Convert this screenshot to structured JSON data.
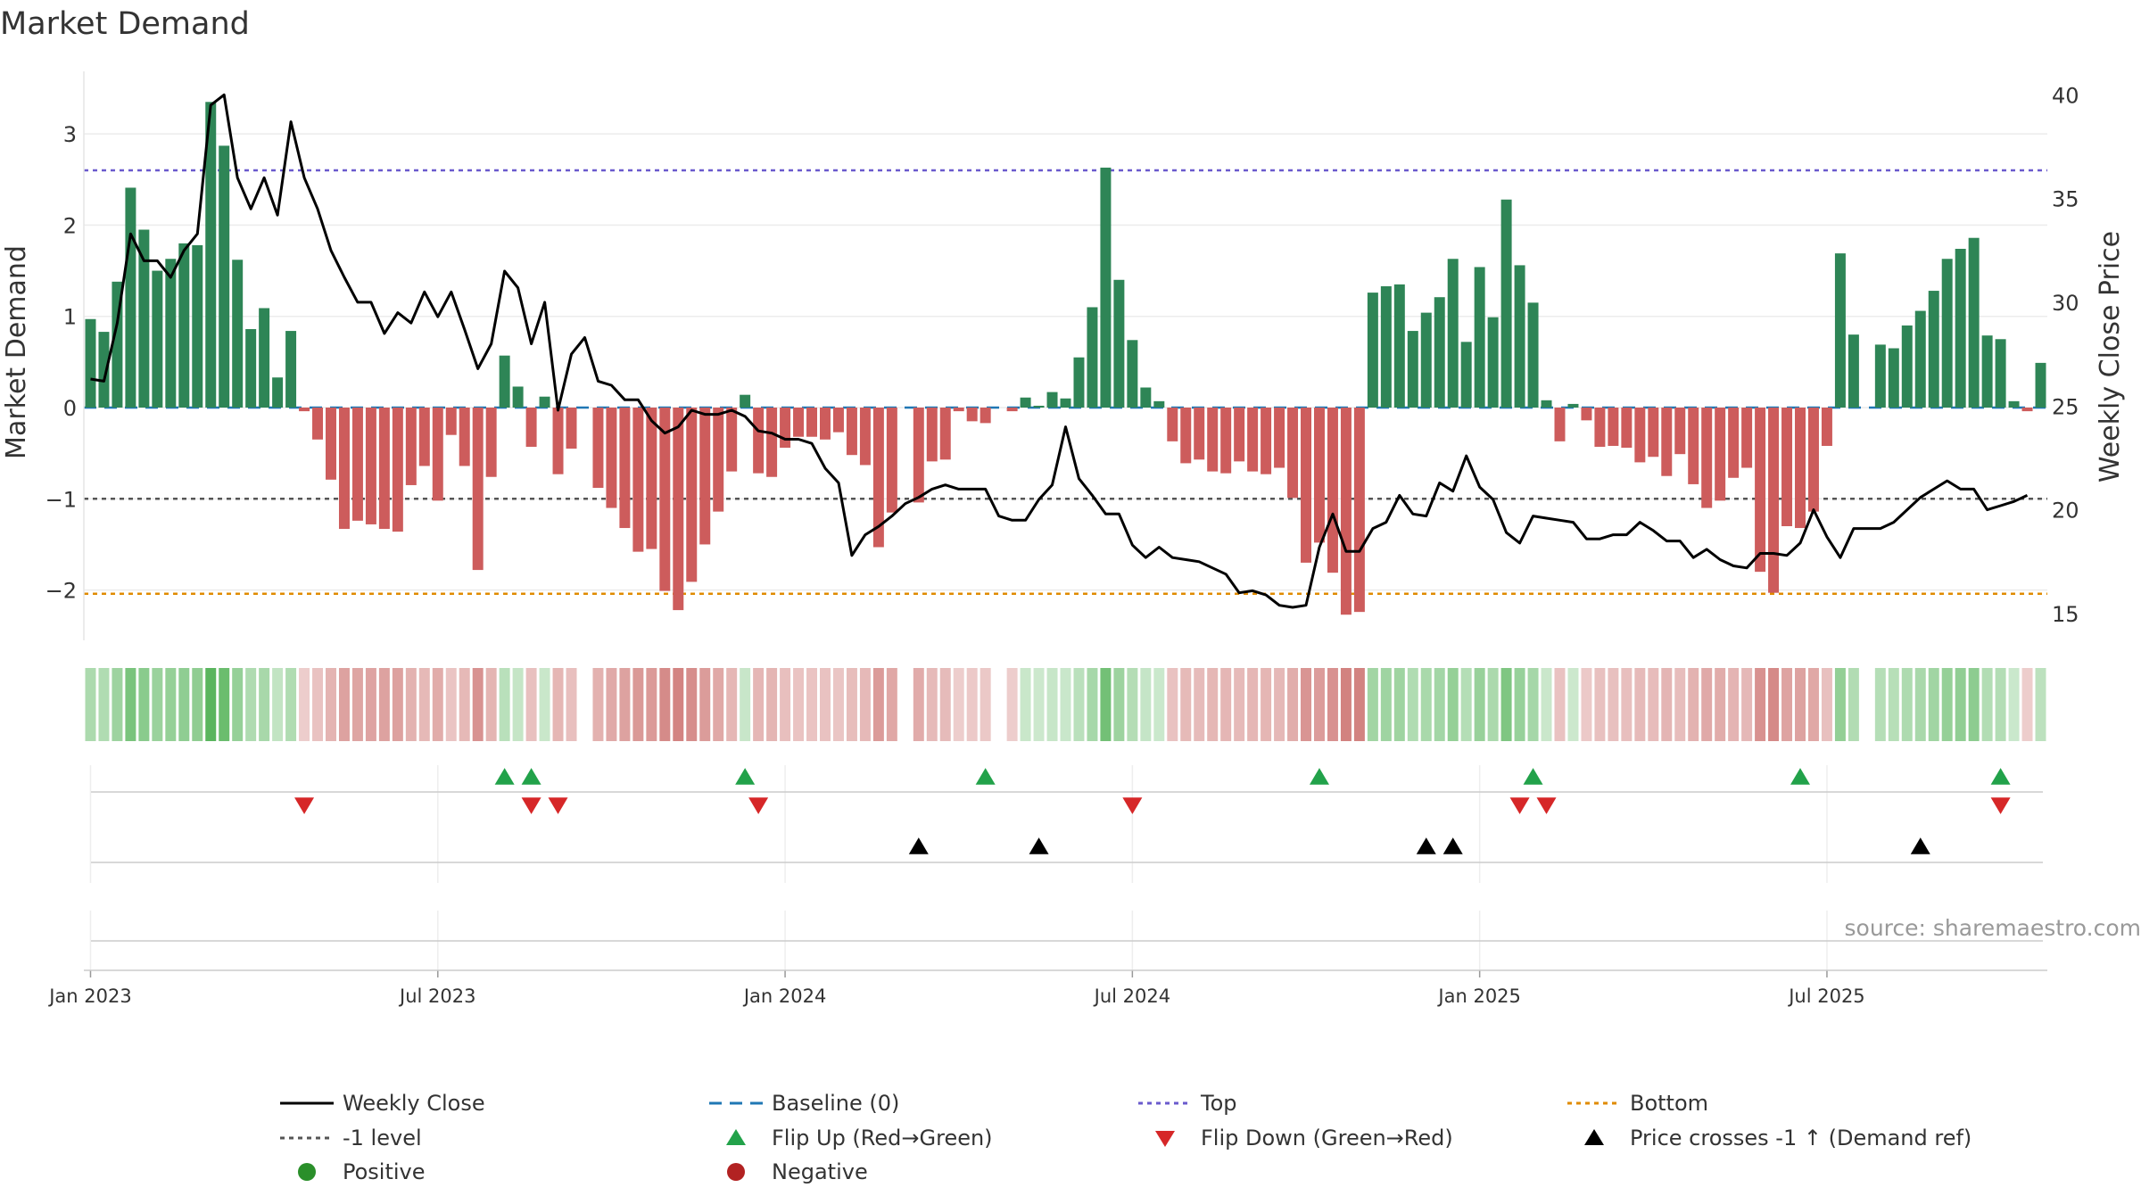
{
  "chart_data": {
    "type": "bar+line",
    "title": "Market Demand",
    "ylabel_left": "Market Demand",
    "ylabel_right": "Weekly Close Price",
    "ylim_left": [
      -2.55,
      3.7
    ],
    "ylim_right": [
      14.5,
      41
    ],
    "yticks_left": [
      {
        "v": 3,
        "label": "3"
      },
      {
        "v": 2,
        "label": "2"
      },
      {
        "v": 1,
        "label": "1"
      },
      {
        "v": 0,
        "label": "0"
      },
      {
        "v": -1,
        "label": "−1"
      },
      {
        "v": -2,
        "label": "−2"
      }
    ],
    "yticks_right": [
      {
        "v": 40,
        "label": "40"
      },
      {
        "v": 35,
        "label": "35"
      },
      {
        "v": 30,
        "label": "30"
      },
      {
        "v": 25,
        "label": "25"
      },
      {
        "v": 20,
        "label": "20"
      },
      {
        "v": 15,
        "label": "15"
      }
    ],
    "xticks": [
      {
        "week": 1,
        "label": "Jan 2023"
      },
      {
        "week": 27,
        "label": "Jul 2023"
      },
      {
        "week": 53,
        "label": "Jan 2024"
      },
      {
        "week": 79,
        "label": "Jul 2024"
      },
      {
        "week": 105,
        "label": "Jan 2025"
      },
      {
        "week": 131,
        "label": "Jul 2025"
      }
    ],
    "levels": {
      "top": 2.6,
      "bottom": -2.04,
      "minus_one": -1,
      "baseline": 0
    },
    "demand": [
      0.97,
      0.83,
      1.38,
      2.41,
      1.95,
      1.5,
      1.63,
      1.8,
      1.78,
      3.35,
      2.87,
      1.62,
      0.86,
      1.09,
      0.33,
      0.84,
      -0.04,
      -0.35,
      -0.79,
      -1.33,
      -1.24,
      -1.28,
      -1.33,
      -1.36,
      -0.85,
      -0.64,
      -1.02,
      -0.3,
      -0.64,
      -1.78,
      -0.76,
      0.57,
      0.23,
      -0.43,
      0.12,
      -0.73,
      -0.45,
      0,
      -0.88,
      -1.1,
      -1.32,
      -1.58,
      -1.55,
      -2.01,
      -2.22,
      -1.91,
      -1.5,
      -1.14,
      -0.7,
      0.14,
      -0.72,
      -0.76,
      -0.44,
      -0.32,
      -0.32,
      -0.35,
      -0.27,
      -0.52,
      -0.63,
      -1.53,
      -1.15,
      0,
      -1.04,
      -0.59,
      -0.57,
      -0.04,
      -0.15,
      -0.17,
      0,
      -0.04,
      0.11,
      0.02,
      0.17,
      0.1,
      0.55,
      1.1,
      2.63,
      1.4,
      0.74,
      0.22,
      0.07,
      -0.37,
      -0.61,
      -0.57,
      -0.7,
      -0.72,
      -0.59,
      -0.7,
      -0.73,
      -0.66,
      -0.99,
      -1.7,
      -1.48,
      -1.81,
      -2.27,
      -2.24,
      1.26,
      1.33,
      1.35,
      0.84,
      1.04,
      1.21,
      1.63,
      0.72,
      1.54,
      0.99,
      2.28,
      1.56,
      1.15,
      0.08,
      -0.37,
      0.04,
      -0.14,
      -0.43,
      -0.42,
      -0.44,
      -0.6,
      -0.54,
      -0.75,
      -0.51,
      -0.84,
      -1.1,
      -1.02,
      -0.77,
      -0.66,
      -1.8,
      -2.03,
      -1.3,
      -1.32,
      -1.14,
      -0.42,
      1.69,
      0.8,
      0,
      0.69,
      0.65,
      0.9,
      1.06,
      1.28,
      1.63,
      1.74,
      1.86,
      0.79,
      0.75,
      0.07,
      -0.04,
      0.49
    ],
    "close": [
      26.3,
      26.2,
      29,
      33.3,
      32,
      32,
      31.2,
      32.5,
      33.3,
      39.5,
      40,
      36,
      34.5,
      36,
      34.2,
      38.7,
      36,
      34.5,
      32.5,
      31.2,
      30,
      30,
      28.5,
      29.5,
      29,
      30.5,
      29.3,
      30.5,
      28.7,
      26.8,
      28,
      31.5,
      30.7,
      28,
      30,
      24.8,
      27.5,
      28.3,
      26.2,
      26,
      25.3,
      25.3,
      24.3,
      23.7,
      24,
      24.8,
      24.6,
      24.6,
      24.8,
      24.5,
      23.8,
      23.7,
      23.4,
      23.4,
      23.2,
      22,
      21.3,
      17.8,
      18.8,
      19.2,
      19.7,
      20.3,
      20.6,
      21,
      21.2,
      21,
      21,
      21,
      19.7,
      19.5,
      19.5,
      20.5,
      21.2,
      24,
      21.5,
      20.7,
      19.8,
      19.8,
      18.3,
      17.7,
      18.2,
      17.7,
      17.6,
      17.5,
      17.2,
      16.9,
      16,
      16.1,
      15.9,
      15.4,
      15.3,
      15.4,
      18.2,
      19.8,
      18,
      18,
      19.1,
      19.4,
      20.7,
      19.8,
      19.7,
      21.3,
      20.9,
      22.6,
      21.1,
      20.5,
      18.9,
      18.4,
      19.7,
      19.6,
      19.5,
      19.4,
      18.6,
      18.6,
      18.8,
      18.8,
      19.4,
      19,
      18.5,
      18.5,
      17.7,
      18.1,
      17.6,
      17.3,
      17.2,
      17.9,
      17.9,
      17.8,
      18.4,
      20,
      18.7,
      17.7,
      19.1,
      19.1,
      19.1,
      19.4,
      20,
      20.6,
      21,
      21.4,
      21,
      21,
      20,
      20.2,
      20.4,
      20.7
    ],
    "flip_up_weeks": [
      32,
      34,
      50,
      68,
      93,
      109,
      129,
      144
    ],
    "flip_down_weeks": [
      17,
      34,
      36,
      51,
      79,
      108,
      110,
      144
    ],
    "price_cross_weeks": [
      63,
      72,
      101,
      103,
      138
    ],
    "legend": [
      {
        "label": "Weekly Close",
        "kind": "line",
        "color": "#000000"
      },
      {
        "label": "Baseline (0)",
        "kind": "dash",
        "color": "#1f77b4"
      },
      {
        "label": "Top",
        "kind": "dot",
        "color": "#6a5acd"
      },
      {
        "label": "Bottom",
        "kind": "dot",
        "color": "#e08b00"
      },
      {
        "label": "-1 level",
        "kind": "dot",
        "color": "#555555"
      },
      {
        "label": "Flip Up (Red→Green)",
        "kind": "tri-up",
        "color": "#22a24a"
      },
      {
        "label": "Flip Down (Green→Red)",
        "kind": "tri-down",
        "color": "#d62728"
      },
      {
        "label": "Price crosses -1 ↑ (Demand ref)",
        "kind": "tri-up",
        "color": "#000000"
      },
      {
        "label": "Positive",
        "kind": "circle",
        "color": "#2a8f2a"
      },
      {
        "label": "Negative",
        "kind": "circle",
        "color": "#b22222"
      }
    ],
    "colors": {
      "positive": "#2e8556",
      "negative": "#cd5c5c",
      "close": "#000000"
    },
    "source": "source: sharemaestro.com"
  }
}
